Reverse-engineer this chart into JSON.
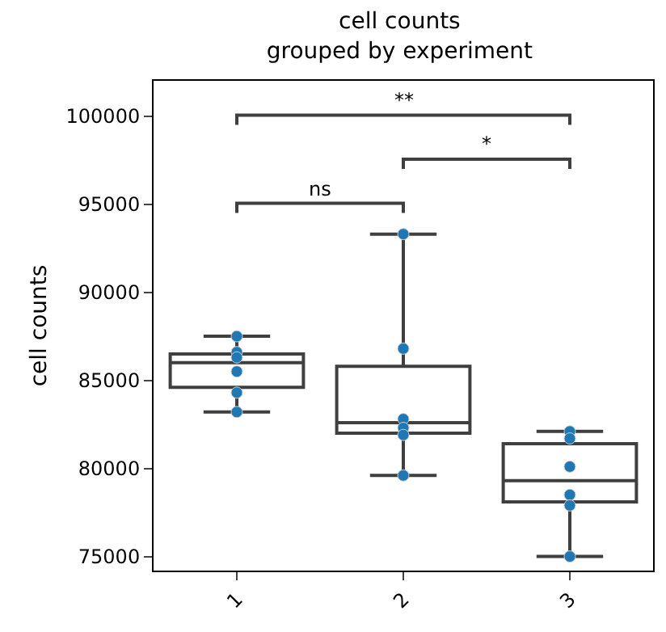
{
  "chart_data": {
    "type": "box",
    "title": "cell counts\ngrouped by experiment",
    "ylabel": "cell counts",
    "categories": [
      "1",
      "2",
      "3"
    ],
    "boxes": [
      {
        "low": 83200,
        "q1": 84600,
        "median": 86000,
        "q3": 86500,
        "high": 87500
      },
      {
        "low": 79600,
        "q1": 82000,
        "median": 82600,
        "q3": 85800,
        "high": 93300
      },
      {
        "low": 75000,
        "q1": 78100,
        "median": 79300,
        "q3": 81400,
        "high": 82100
      }
    ],
    "color": "#3f3f3f",
    "series": [
      {
        "type": "scatter",
        "color": "#1f77b4",
        "x": [
          "1",
          "1",
          "1",
          "1",
          "1",
          "1",
          "2",
          "2",
          "2",
          "2",
          "2",
          "2",
          "3",
          "3",
          "3",
          "3",
          "3",
          "3"
        ],
        "values": [
          87500,
          86600,
          86300,
          85500,
          84300,
          83200,
          93300,
          86800,
          82800,
          82300,
          81900,
          79600,
          82100,
          81700,
          80100,
          78500,
          77900,
          75000
        ]
      }
    ],
    "marker": "circle",
    "ylim": [
      74200,
      102000
    ],
    "yticks": [
      75000,
      80000,
      85000,
      90000,
      95000,
      100000
    ],
    "annotations": [
      "ns",
      "*",
      "**"
    ]
  }
}
